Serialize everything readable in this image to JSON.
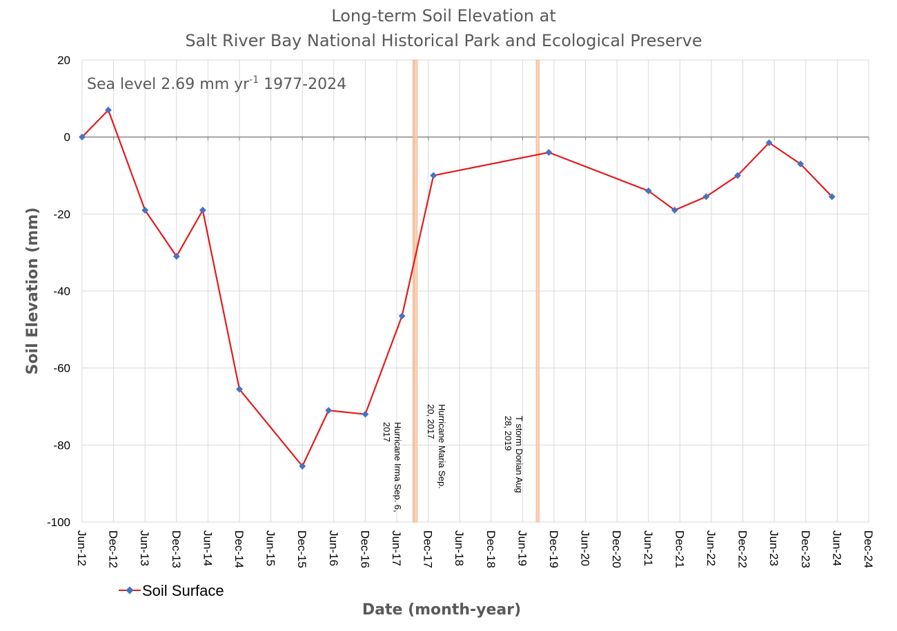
{
  "chart_data": {
    "type": "line",
    "title_lines": [
      "Long-term Soil Elevation at",
      "Salt River Bay National Historical Park and Ecological Preserve"
    ],
    "xlabel": "Date (month-year)",
    "ylabel": "Soil Elevation (mm)",
    "xlim": [
      "2012-06",
      "2024-12"
    ],
    "ylim": [
      -100,
      20
    ],
    "y_ticks": [
      20,
      0,
      -20,
      -40,
      -60,
      -80,
      -100
    ],
    "x_tick_labels": [
      "Jun-12",
      "Dec-12",
      "Jun-13",
      "Dec-13",
      "Jun-14",
      "Dec-14",
      "Jun-15",
      "Dec-15",
      "Jun-16",
      "Dec-16",
      "Jun-17",
      "Dec-17",
      "Jun-18",
      "Dec-18",
      "Jun-19",
      "Dec-19",
      "Jun-20",
      "Dec-20",
      "Jun-21",
      "Dec-21",
      "Jun-22",
      "Dec-22",
      "Jun-23",
      "Dec-23",
      "Jun-24",
      "Dec-24"
    ],
    "grid": true,
    "annotation": {
      "text": "Sea level 2.69 mm yr",
      "superscript": "-1",
      "suffix": " 1977-2024"
    },
    "events": [
      {
        "start": "2017-09-03",
        "end": "2017-09-09",
        "label_line1": "Hurricane Irma Sep. 6,",
        "label_line2": "2017"
      },
      {
        "start": "2017-09-11",
        "end": "2017-09-29",
        "label_line1": "Hurricane Maria Sep.",
        "label_line2": "20, 2017"
      },
      {
        "start": "2019-08-19",
        "end": "2019-09-06",
        "label_line1": "T storm Dorian Aug",
        "label_line2": "28, 2019"
      }
    ],
    "series": [
      {
        "name": "Soil Surface",
        "line_color": "#e31a1c",
        "marker_color": "#4472c4",
        "points": [
          {
            "x": "2012-06",
            "y": 0
          },
          {
            "x": "2012-11",
            "y": 7
          },
          {
            "x": "2013-06",
            "y": -19
          },
          {
            "x": "2013-12",
            "y": -31
          },
          {
            "x": "2014-05",
            "y": -19
          },
          {
            "x": "2014-12",
            "y": -65.5
          },
          {
            "x": "2015-12",
            "y": -85.5
          },
          {
            "x": "2016-05",
            "y": -71
          },
          {
            "x": "2016-12",
            "y": -72
          },
          {
            "x": "2017-07",
            "y": -46.5
          },
          {
            "x": "2018-01",
            "y": -10
          },
          {
            "x": "2019-11",
            "y": -4
          },
          {
            "x": "2021-06",
            "y": -14
          },
          {
            "x": "2021-11",
            "y": -19
          },
          {
            "x": "2022-05",
            "y": -15.5
          },
          {
            "x": "2022-11",
            "y": -10
          },
          {
            "x": "2023-05",
            "y": -1.5
          },
          {
            "x": "2023-11",
            "y": -7
          },
          {
            "x": "2024-05",
            "y": -15.5
          }
        ]
      }
    ],
    "legend_position": "bottom-left"
  }
}
